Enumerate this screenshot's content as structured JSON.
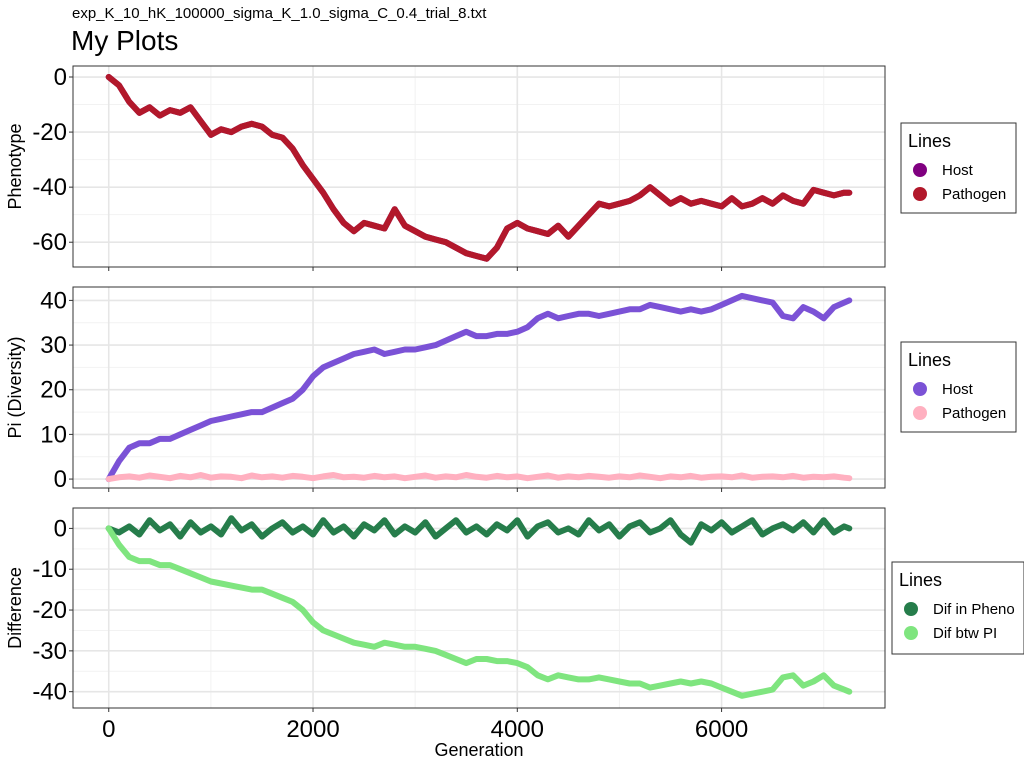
{
  "page": {
    "subtitle": "exp_K_10_hK_100000_sigma_K_1.0_sigma_C_0.4_trial_8.txt",
    "title": "My Plots"
  },
  "chart_data": [
    {
      "type": "line",
      "xlabel": "",
      "ylabel": "Phenotype",
      "xlim": [
        -350,
        7600
      ],
      "ylim": [
        -69,
        4
      ],
      "xticks": [
        0,
        2000,
        4000,
        6000
      ],
      "yticks": [
        0,
        -20,
        -40,
        -60
      ],
      "ytick_labels": [
        "0",
        "-20",
        "-40",
        "-60"
      ],
      "legend": {
        "title": "Lines",
        "placement": "right",
        "entries": [
          {
            "label": "Host",
            "color": "#800080"
          },
          {
            "label": "Pathogen",
            "color": "#b2182b"
          }
        ]
      },
      "series": [
        {
          "name": "Host",
          "color": "#800080",
          "x": [
            0,
            100,
            200,
            300,
            400,
            500,
            600,
            700,
            800,
            900,
            1000,
            1100,
            1200,
            1300,
            1400,
            1500,
            1600,
            1700,
            1800,
            1900,
            2000,
            2100,
            2200,
            2300,
            2400,
            2500,
            2600,
            2700,
            2800,
            2900,
            3000,
            3100,
            3200,
            3300,
            3400,
            3500,
            3600,
            3700,
            3800,
            3900,
            4000,
            4100,
            4200,
            4300,
            4400,
            4500,
            4600,
            4700,
            4800,
            4900,
            5000,
            5100,
            5200,
            5300,
            5400,
            5500,
            5600,
            5700,
            5800,
            5900,
            6000,
            6100,
            6200,
            6300,
            6400,
            6500,
            6600,
            6700,
            6800,
            6900,
            7000,
            7100,
            7200,
            7250
          ],
          "y": [
            0,
            -3,
            -9,
            -13,
            -11,
            -14,
            -12,
            -13,
            -11,
            -16,
            -21,
            -19,
            -20,
            -18,
            -17,
            -18,
            -21,
            -22,
            -26,
            -32,
            -37,
            -42,
            -48,
            -53,
            -56,
            -53,
            -54,
            -55,
            -48,
            -54,
            -56,
            -58,
            -59,
            -60,
            -62,
            -64,
            -65,
            -66,
            -62,
            -55,
            -53,
            -55,
            -56,
            -57,
            -54,
            -58,
            -54,
            -50,
            -46,
            -47,
            -46,
            -45,
            -43,
            -40,
            -43,
            -46,
            -44,
            -46,
            -45,
            -46,
            -47,
            -44,
            -47,
            -46,
            -44,
            -46,
            -43,
            -45,
            -46,
            -41,
            -42,
            -43,
            -42,
            -42
          ]
        },
        {
          "name": "Pathogen",
          "color": "#b2182b",
          "x": [
            0,
            100,
            200,
            300,
            400,
            500,
            600,
            700,
            800,
            900,
            1000,
            1100,
            1200,
            1300,
            1400,
            1500,
            1600,
            1700,
            1800,
            1900,
            2000,
            2100,
            2200,
            2300,
            2400,
            2500,
            2600,
            2700,
            2800,
            2900,
            3000,
            3100,
            3200,
            3300,
            3400,
            3500,
            3600,
            3700,
            3800,
            3900,
            4000,
            4100,
            4200,
            4300,
            4400,
            4500,
            4600,
            4700,
            4800,
            4900,
            5000,
            5100,
            5200,
            5300,
            5400,
            5500,
            5600,
            5700,
            5800,
            5900,
            6000,
            6100,
            6200,
            6300,
            6400,
            6500,
            6600,
            6700,
            6800,
            6900,
            7000,
            7100,
            7200,
            7250
          ],
          "y": [
            0,
            -3,
            -9,
            -13,
            -11,
            -14,
            -12,
            -13,
            -11,
            -16,
            -21,
            -19,
            -20,
            -18,
            -17,
            -18,
            -21,
            -22,
            -26,
            -32,
            -37,
            -42,
            -48,
            -53,
            -56,
            -53,
            -54,
            -55,
            -48,
            -54,
            -56,
            -58,
            -59,
            -60,
            -62,
            -64,
            -65,
            -66,
            -62,
            -55,
            -53,
            -55,
            -56,
            -57,
            -54,
            -58,
            -54,
            -50,
            -46,
            -47,
            -46,
            -45,
            -43,
            -40,
            -43,
            -46,
            -44,
            -46,
            -45,
            -46,
            -47,
            -44,
            -47,
            -46,
            -44,
            -46,
            -43,
            -45,
            -46,
            -41,
            -42,
            -43,
            -42,
            -42
          ]
        }
      ]
    },
    {
      "type": "line",
      "xlabel": "",
      "ylabel": "Pi (Diversity)",
      "xlim": [
        -350,
        7600
      ],
      "ylim": [
        -2,
        43
      ],
      "xticks": [
        0,
        2000,
        4000,
        6000
      ],
      "yticks": [
        0,
        10,
        20,
        30,
        40
      ],
      "ytick_labels": [
        "0",
        "10",
        "20",
        "30",
        "40"
      ],
      "legend": {
        "title": "Lines",
        "placement": "right",
        "entries": [
          {
            "label": "Host",
            "color": "#7b52d6"
          },
          {
            "label": "Pathogen",
            "color": "#ffb0c0"
          }
        ]
      },
      "series": [
        {
          "name": "Host",
          "color": "#7b52d6",
          "x": [
            0,
            100,
            200,
            300,
            400,
            500,
            600,
            700,
            800,
            900,
            1000,
            1100,
            1200,
            1300,
            1400,
            1500,
            1600,
            1700,
            1800,
            1900,
            2000,
            2100,
            2200,
            2300,
            2400,
            2500,
            2600,
            2700,
            2800,
            2900,
            3000,
            3100,
            3200,
            3300,
            3400,
            3500,
            3600,
            3700,
            3800,
            3900,
            4000,
            4100,
            4200,
            4300,
            4400,
            4500,
            4600,
            4700,
            4800,
            4900,
            5000,
            5100,
            5200,
            5300,
            5400,
            5500,
            5600,
            5700,
            5800,
            5900,
            6000,
            6100,
            6200,
            6300,
            6400,
            6500,
            6600,
            6700,
            6800,
            6900,
            7000,
            7100,
            7200,
            7250
          ],
          "y": [
            0,
            4,
            7,
            8,
            8,
            9,
            9,
            10,
            11,
            12,
            13,
            13.5,
            14,
            14.5,
            15,
            15,
            16,
            17,
            18,
            20,
            23,
            25,
            26,
            27,
            28,
            28.5,
            29,
            28,
            28.5,
            29,
            29,
            29.5,
            30,
            31,
            32,
            33,
            32,
            32,
            32.5,
            32.5,
            33,
            34,
            36,
            37,
            36,
            36.5,
            37,
            37,
            36.5,
            37,
            37.5,
            38,
            38,
            39,
            38.5,
            38,
            37.5,
            38,
            37.5,
            38,
            39,
            40,
            41,
            40.5,
            40,
            39.5,
            36.5,
            36,
            38.5,
            37.5,
            36,
            38.5,
            39.5,
            40
          ]
        },
        {
          "name": "Pathogen",
          "color": "#ffb0c0",
          "x": [
            0,
            100,
            200,
            300,
            400,
            500,
            600,
            700,
            800,
            900,
            1000,
            1100,
            1200,
            1300,
            1400,
            1500,
            1600,
            1700,
            1800,
            1900,
            2000,
            2100,
            2200,
            2300,
            2400,
            2500,
            2600,
            2700,
            2800,
            2900,
            3000,
            3100,
            3200,
            3300,
            3400,
            3500,
            3600,
            3700,
            3800,
            3900,
            4000,
            4100,
            4200,
            4300,
            4400,
            4500,
            4600,
            4700,
            4800,
            4900,
            5000,
            5100,
            5200,
            5300,
            5400,
            5500,
            5600,
            5700,
            5800,
            5900,
            6000,
            6100,
            6200,
            6300,
            6400,
            6500,
            6600,
            6700,
            6800,
            6900,
            7000,
            7100,
            7200,
            7250
          ],
          "y": [
            0,
            0.4,
            0.6,
            0.3,
            0.8,
            0.5,
            0.2,
            0.7,
            0.4,
            0.9,
            0.3,
            0.6,
            0.5,
            0.2,
            0.8,
            0.4,
            0.6,
            0.3,
            0.7,
            0.5,
            0.2,
            0.6,
            0.9,
            0.4,
            0.5,
            0.3,
            0.7,
            0.4,
            0.6,
            0.2,
            0.5,
            0.8,
            0.3,
            0.6,
            0.4,
            0.9,
            0.5,
            0.3,
            0.7,
            0.4,
            0.6,
            0.2,
            0.5,
            0.8,
            0.3,
            0.6,
            0.4,
            0.7,
            0.5,
            0.3,
            0.6,
            0.4,
            0.8,
            0.5,
            0.2,
            0.6,
            0.4,
            0.7,
            0.3,
            0.5,
            0.6,
            0.4,
            0.8,
            0.3,
            0.5,
            0.6,
            0.4,
            0.7,
            0.3,
            0.5,
            0.4,
            0.6,
            0.3,
            0.2
          ]
        }
      ]
    },
    {
      "type": "line",
      "xlabel": "Generation",
      "ylabel": "Difference",
      "xlim": [
        -350,
        7600
      ],
      "ylim": [
        -44,
        5
      ],
      "xticks": [
        0,
        2000,
        4000,
        6000
      ],
      "yticks": [
        0,
        -10,
        -20,
        -30,
        -40
      ],
      "ytick_labels": [
        "0",
        "-10",
        "-20",
        "-30",
        "-40"
      ],
      "xtick_labels": [
        "0",
        "2000",
        "4000",
        "6000"
      ],
      "legend": {
        "title": "Lines",
        "placement": "right",
        "entries": [
          {
            "label": "Dif in Pheno",
            "color": "#267d4b"
          },
          {
            "label": "Dif btw PI",
            "color": "#7fe57f"
          }
        ]
      },
      "series": [
        {
          "name": "Dif in Pheno",
          "color": "#267d4b",
          "x": [
            0,
            100,
            200,
            300,
            400,
            500,
            600,
            700,
            800,
            900,
            1000,
            1100,
            1200,
            1300,
            1400,
            1500,
            1600,
            1700,
            1800,
            1900,
            2000,
            2100,
            2200,
            2300,
            2400,
            2500,
            2600,
            2700,
            2800,
            2900,
            3000,
            3100,
            3200,
            3300,
            3400,
            3500,
            3600,
            3700,
            3800,
            3900,
            4000,
            4100,
            4200,
            4300,
            4400,
            4500,
            4600,
            4700,
            4800,
            4900,
            5000,
            5100,
            5200,
            5300,
            5400,
            5500,
            5600,
            5700,
            5800,
            5900,
            6000,
            6100,
            6200,
            6300,
            6400,
            6500,
            6600,
            6700,
            6800,
            6900,
            7000,
            7100,
            7200,
            7250
          ],
          "y": [
            0,
            -1,
            0.5,
            -1.5,
            2,
            -0.5,
            1,
            -2,
            1.5,
            -1,
            0.5,
            -1.5,
            2.5,
            -0.5,
            1,
            -2,
            0,
            1.5,
            -1,
            0.5,
            -1.5,
            2,
            -1,
            0.5,
            -2,
            1,
            -0.5,
            2,
            -1.5,
            0.5,
            -1,
            1.5,
            -2,
            0,
            2,
            -1,
            0.5,
            -1.5,
            1,
            -0.5,
            2,
            -2,
            0.5,
            1.5,
            -1,
            0,
            -1.5,
            2,
            -0.5,
            1,
            -2,
            0.5,
            1.5,
            -1,
            0,
            2,
            -1.5,
            -3.5,
            1,
            -0.5,
            1.5,
            -1,
            0.5,
            2,
            -1.5,
            0,
            1,
            -0.5,
            1.5,
            -1,
            2,
            -1,
            0.5,
            0
          ]
        },
        {
          "name": "Dif btw PI",
          "color": "#7fe57f",
          "x": [
            0,
            100,
            200,
            300,
            400,
            500,
            600,
            700,
            800,
            900,
            1000,
            1100,
            1200,
            1300,
            1400,
            1500,
            1600,
            1700,
            1800,
            1900,
            2000,
            2100,
            2200,
            2300,
            2400,
            2500,
            2600,
            2700,
            2800,
            2900,
            3000,
            3100,
            3200,
            3300,
            3400,
            3500,
            3600,
            3700,
            3800,
            3900,
            4000,
            4100,
            4200,
            4300,
            4400,
            4500,
            4600,
            4700,
            4800,
            4900,
            5000,
            5100,
            5200,
            5300,
            5400,
            5500,
            5600,
            5700,
            5800,
            5900,
            6000,
            6100,
            6200,
            6300,
            6400,
            6500,
            6600,
            6700,
            6800,
            6900,
            7000,
            7100,
            7200,
            7250
          ],
          "y": [
            0,
            -4,
            -7,
            -8,
            -8,
            -9,
            -9,
            -10,
            -11,
            -12,
            -13,
            -13.5,
            -14,
            -14.5,
            -15,
            -15,
            -16,
            -17,
            -18,
            -20,
            -23,
            -25,
            -26,
            -27,
            -28,
            -28.5,
            -29,
            -28,
            -28.5,
            -29,
            -29,
            -29.5,
            -30,
            -31,
            -32,
            -33,
            -32,
            -32,
            -32.5,
            -32.5,
            -33,
            -34,
            -36,
            -37,
            -36,
            -36.5,
            -37,
            -37,
            -36.5,
            -37,
            -37.5,
            -38,
            -38,
            -39,
            -38.5,
            -38,
            -37.5,
            -38,
            -37.5,
            -38,
            -39,
            -40,
            -41,
            -40.5,
            -40,
            -39.5,
            -36.5,
            -36,
            -38.5,
            -37.5,
            -36,
            -38.5,
            -39.5,
            -40
          ]
        }
      ]
    }
  ]
}
